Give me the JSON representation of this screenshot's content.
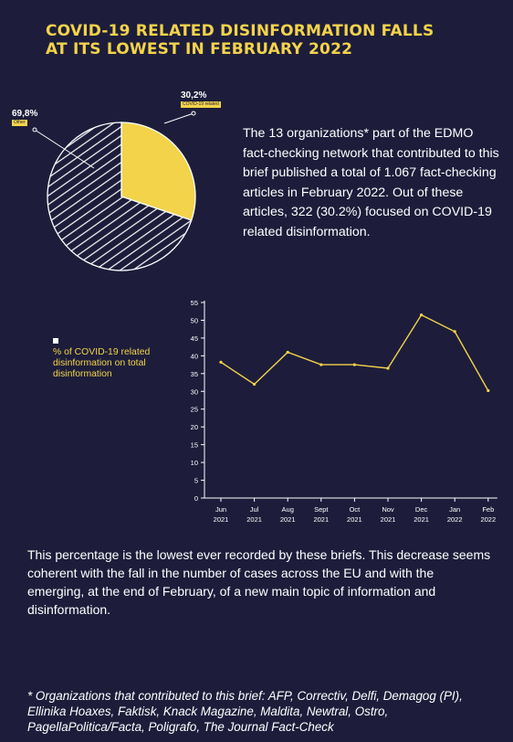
{
  "header": {
    "title_line1": "COVID-19 related disinformation falls",
    "title_line2": "at its lowest in February 2022"
  },
  "colors": {
    "background": "#1d1d3b",
    "accent": "#f3d34a",
    "text": "#ffffff"
  },
  "intro_text": "The 13 organizations* part of the EDMO fact-checking network that contributed to this brief published a total of 1.067 fact-checking articles in February 2022. Out of these articles, 322 (30.2%) focused on COVID-19 related disinformation.",
  "conclusion_text": "This percentage is the lowest ever recorded by these briefs. This decrease seems coherent with the fall in the number of cases across the EU and with the emerging, at the end of February, of a new main topic of information and disinformation.",
  "footnote": "* Organizations that contributed to this brief: AFP, Correctiv, Delfi, Demagog (PI), Ellinika Hoaxes, Faktisk, Knack Magazine, Maldita, Newtral, Ostro, PagellaPolitica/Facta, Poligrafo, The Journal Fact-Check",
  "legend_label": "% of COVID-19 related disinformation on total disinformation",
  "chart_data": [
    {
      "type": "pie",
      "slices": [
        {
          "label": "COVID-19 related",
          "value": 30.2,
          "display": "30,2%",
          "fill": "solid-yellow"
        },
        {
          "label": "Other",
          "value": 69.8,
          "display": "69,8%",
          "fill": "hatched"
        }
      ]
    },
    {
      "type": "line",
      "categories": [
        [
          "Jun",
          "2021"
        ],
        [
          "Jul",
          "2021"
        ],
        [
          "Aug",
          "2021"
        ],
        [
          "Sept",
          "2021"
        ],
        [
          "Oct",
          "2021"
        ],
        [
          "Nov",
          "2021"
        ],
        [
          "Dec",
          "2021"
        ],
        [
          "Jan",
          "2022"
        ],
        [
          "Feb",
          "2022"
        ]
      ],
      "series": [
        {
          "name": "% of COVID-19 related disinformation on total disinformation",
          "values": [
            38.2,
            32,
            41,
            37.5,
            37.5,
            36.5,
            51.5,
            46.8,
            30.2
          ],
          "color": "#f3d34a"
        }
      ],
      "ylim": [
        0,
        55
      ],
      "yticks": [
        0,
        5,
        10,
        15,
        20,
        25,
        30,
        35,
        40,
        45,
        50,
        55
      ],
      "grid": false
    }
  ]
}
